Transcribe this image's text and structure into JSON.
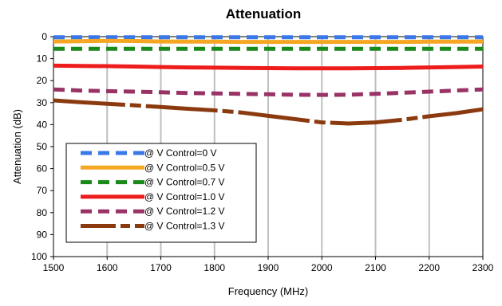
{
  "chart_data": {
    "type": "line",
    "title": "Attenuation",
    "xlabel": "Frequency (MHz)",
    "ylabel": "Attenuation (dB)",
    "xlim": [
      1500,
      2300
    ],
    "ylim": [
      0,
      100
    ],
    "y_inverted": true,
    "xticks": [
      "1500",
      "1600",
      "1700",
      "1800",
      "1900",
      "2000",
      "2100",
      "2200",
      "2300"
    ],
    "yticks": [
      "0",
      "10",
      "20",
      "30",
      "40",
      "50",
      "60",
      "70",
      "80",
      "90",
      "100"
    ],
    "grid": "vertical",
    "legend": "bottom-left",
    "x": [
      1500,
      1550,
      1600,
      1650,
      1700,
      1750,
      1800,
      1850,
      1900,
      1950,
      2000,
      2050,
      2100,
      2150,
      2200,
      2250,
      2300
    ],
    "series": [
      {
        "name": "@ V Control=0 V",
        "color": "#3a78e8",
        "dash": "dash",
        "values": [
          0.3,
          0.3,
          0.3,
          0.3,
          0.3,
          0.3,
          0.3,
          0.3,
          0.3,
          0.3,
          0.3,
          0.3,
          0.3,
          0.3,
          0.3,
          0.3,
          0.3
        ]
      },
      {
        "name": "@ V Control=0.5 V",
        "color": "#f5a623",
        "dash": "solid",
        "values": [
          2.2,
          2.1,
          1.9,
          2.0,
          2.2,
          2.3,
          2.3,
          2.4,
          2.4,
          2.4,
          2.4,
          2.4,
          2.4,
          2.4,
          2.3,
          2.3,
          2.2
        ]
      },
      {
        "name": "@ V Control=0.7 V",
        "color": "#1a8a1a",
        "dash": "dash",
        "values": [
          5.5,
          5.5,
          5.5,
          5.5,
          5.5,
          5.5,
          5.5,
          5.5,
          5.5,
          5.5,
          5.5,
          5.5,
          5.5,
          5.5,
          5.5,
          5.5,
          5.5
        ]
      },
      {
        "name": "@ V Control=1.0 V",
        "color": "#ee1c1c",
        "dash": "solid",
        "values": [
          13.2,
          13.3,
          13.4,
          13.6,
          13.8,
          14.0,
          14.1,
          14.2,
          14.3,
          14.4,
          14.4,
          14.4,
          14.3,
          14.2,
          14.0,
          13.8,
          13.6
        ]
      },
      {
        "name": "@ V Control=1.2 V",
        "color": "#993366",
        "dash": "dash",
        "values": [
          24.0,
          24.5,
          24.8,
          25.0,
          25.3,
          25.6,
          25.8,
          26.0,
          26.2,
          26.4,
          26.5,
          26.4,
          26.0,
          25.5,
          25.0,
          24.5,
          24.0
        ]
      },
      {
        "name": "@ V Control=1.3 V",
        "color": "#8b3a0f",
        "dash": "mixed",
        "values": [
          29.0,
          29.8,
          30.5,
          31.2,
          32.0,
          32.8,
          33.5,
          34.5,
          36.0,
          37.5,
          39.0,
          39.5,
          39.0,
          37.8,
          36.2,
          34.8,
          33.0
        ]
      }
    ]
  }
}
